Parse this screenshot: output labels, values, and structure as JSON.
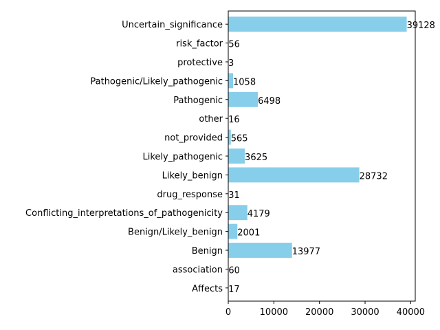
{
  "chart_data": {
    "type": "bar",
    "orientation": "horizontal",
    "title": "",
    "xlabel": "",
    "ylabel": "",
    "bar_color": "#87CEEB",
    "xlim": [
      0,
      41000
    ],
    "xticks": [
      0,
      10000,
      20000,
      30000,
      40000
    ],
    "xtick_labels": [
      "0",
      "10000",
      "20000",
      "30000",
      "40000"
    ],
    "categories": [
      "Affects",
      "association",
      "Benign",
      "Benign/Likely_benign",
      "Conflicting_interpretations_of_pathogenicity",
      "drug_response",
      "Likely_benign",
      "Likely_pathogenic",
      "not_provided",
      "other",
      "Pathogenic",
      "Pathogenic/Likely_pathogenic",
      "protective",
      "risk_factor",
      "Uncertain_significance"
    ],
    "values": [
      17,
      60,
      13977,
      2001,
      4179,
      31,
      28732,
      3625,
      565,
      16,
      6498,
      1058,
      3,
      56,
      39128
    ],
    "value_labels": [
      "17",
      "60",
      "13977",
      "2001",
      "4179",
      "31",
      "28732",
      "3625",
      "565",
      "16",
      "6498",
      "1058",
      "3",
      "56",
      "39128"
    ],
    "grid": false,
    "legend": "none"
  }
}
